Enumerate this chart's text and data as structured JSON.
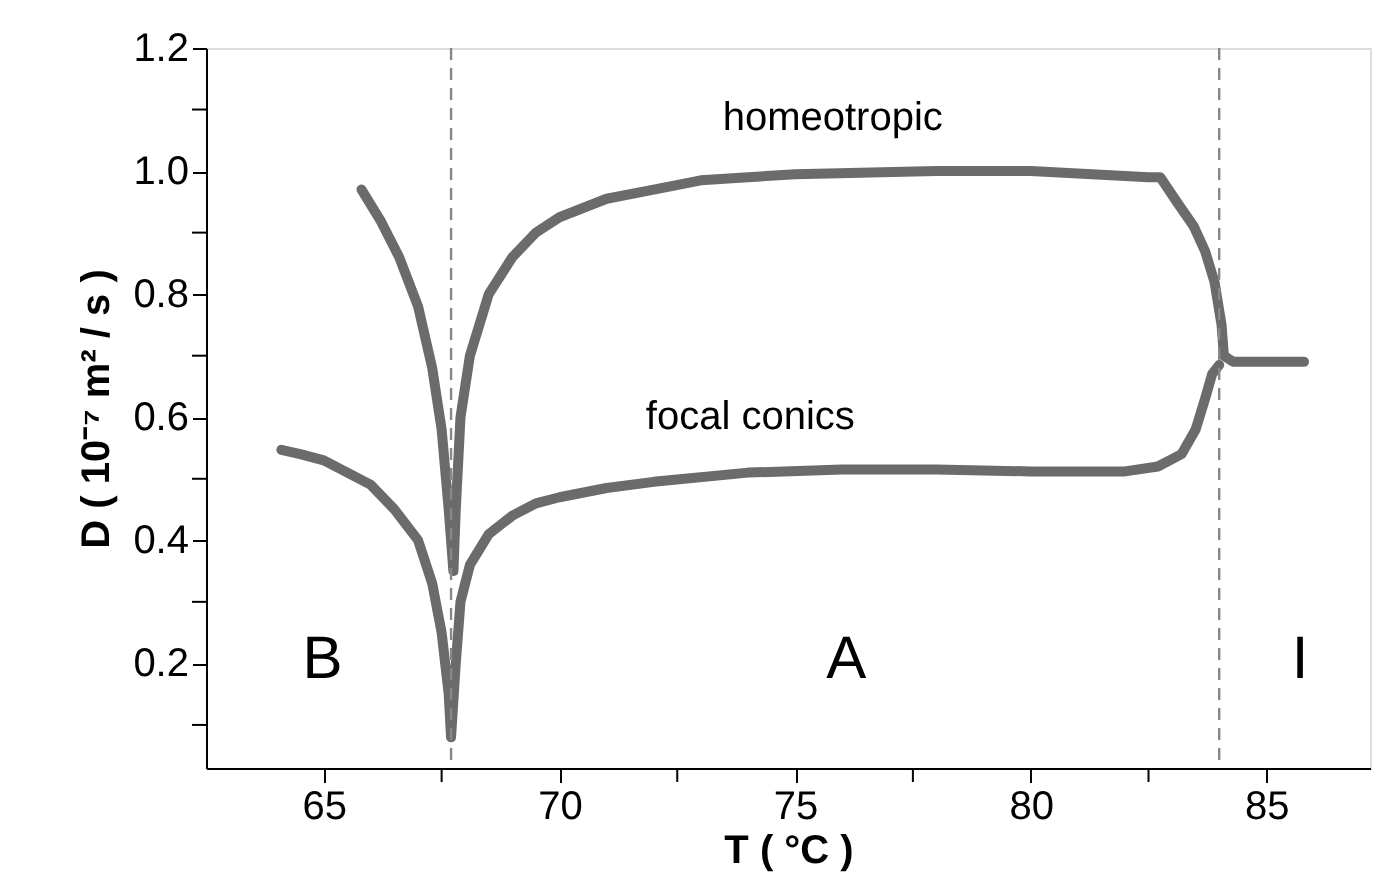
{
  "chart_data": {
    "type": "line",
    "xlabel": "T ( °C )",
    "ylabel": "D ( 10⁻⁷ m² / s )",
    "xlim": [
      62.5,
      87.2
    ],
    "ylim": [
      0.03,
      1.2
    ],
    "xticks": [
      65,
      70,
      75,
      80,
      85,
      {
        "value": 67.5,
        "label": null
      },
      {
        "value": 72.5,
        "label": null
      },
      {
        "value": 77.5,
        "label": null
      },
      {
        "value": 82.5,
        "label": null
      }
    ],
    "yticks": [
      0.2,
      0.4,
      0.6,
      0.8,
      {
        "value": 1,
        "label": "1.0"
      },
      1.2,
      {
        "value": 0.1,
        "label": null
      },
      {
        "value": 0.3,
        "label": null
      },
      {
        "value": 0.5,
        "label": null
      },
      {
        "value": 0.7,
        "label": null
      },
      {
        "value": 0.9,
        "label": null
      },
      {
        "value": 1.1,
        "label": null
      }
    ],
    "series": [
      {
        "name": "homeotropic",
        "color": "#6b6b6b",
        "x": [
          65.8,
          66.2,
          66.6,
          67.0,
          67.3,
          67.5,
          67.65,
          67.75,
          67.8,
          67.9,
          68.1,
          68.5,
          69,
          69.5,
          70,
          71,
          72,
          73,
          75,
          78,
          80,
          82.5,
          82.75,
          83.1,
          83.46,
          83.7,
          83.9,
          84.05,
          84.1,
          84.3,
          85.8
        ],
        "values": [
          0.97,
          0.92,
          0.86,
          0.78,
          0.68,
          0.58,
          0.45,
          0.35,
          0.45,
          0.6,
          0.7,
          0.8,
          0.86,
          0.9,
          0.925,
          0.955,
          0.97,
          0.985,
          0.995,
          1.0,
          1.0,
          0.99,
          0.99,
          0.95,
          0.91,
          0.87,
          0.82,
          0.75,
          0.7,
          0.69,
          0.69
        ]
      },
      {
        "name": "focal conics",
        "color": "#6b6b6b",
        "x": [
          64.1,
          64.5,
          65,
          65.5,
          66,
          66.5,
          67,
          67.3,
          67.5,
          67.65,
          67.7,
          67.8,
          67.9,
          68.1,
          68.5,
          69,
          69.5,
          70,
          71,
          72,
          74,
          76,
          78,
          80,
          82,
          82.7,
          83.2,
          83.5,
          83.7,
          83.85,
          84.0
        ],
        "values": [
          0.547,
          0.54,
          0.53,
          0.51,
          0.49,
          0.45,
          0.4,
          0.33,
          0.25,
          0.15,
          0.08,
          0.2,
          0.3,
          0.36,
          0.41,
          0.44,
          0.46,
          0.47,
          0.485,
          0.495,
          0.51,
          0.515,
          0.515,
          0.512,
          0.512,
          0.52,
          0.54,
          0.58,
          0.63,
          0.67,
          0.685
        ]
      }
    ],
    "marker": "none",
    "line_style": "solid",
    "grid": false,
    "ref_lines": [
      {
        "axis": "x",
        "value": 67.7,
        "color": "#888888",
        "line_style": "dashed"
      },
      {
        "axis": "x",
        "value": 84.0,
        "color": "#888888",
        "line_style": "dashed"
      }
    ],
    "annotations": [
      "B",
      "A",
      "I"
    ]
  }
}
